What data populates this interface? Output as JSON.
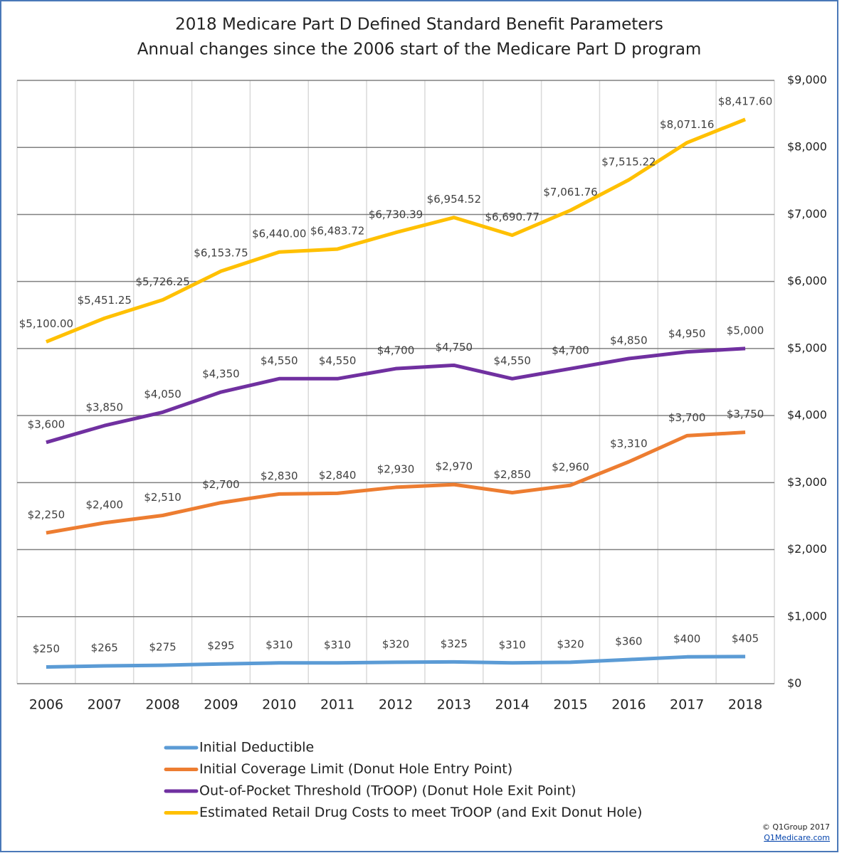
{
  "chart_data": {
    "type": "line",
    "title": "2018 Medicare Part D Defined Standard Benefit Parameters",
    "subtitle": "Annual changes since the 2006 start of the Medicare Part D program",
    "categories": [
      "2006",
      "2007",
      "2008",
      "2009",
      "2010",
      "2011",
      "2012",
      "2013",
      "2014",
      "2015",
      "2016",
      "2017",
      "2018"
    ],
    "series": [
      {
        "name": "Initial Deductible",
        "color": "#5b9bd5",
        "values": [
          250,
          265,
          275,
          295,
          310,
          310,
          320,
          325,
          310,
          320,
          360,
          400,
          405
        ],
        "value_labels": [
          "$250",
          "$265",
          "$275",
          "$295",
          "$310",
          "$310",
          "$320",
          "$325",
          "$310",
          "$320",
          "$360",
          "$400",
          "$405"
        ]
      },
      {
        "name": "Initial Coverage Limit (Donut Hole Entry Point)",
        "color": "#ed7d31",
        "values": [
          2250,
          2400,
          2510,
          2700,
          2830,
          2840,
          2930,
          2970,
          2850,
          2960,
          3310,
          3700,
          3750
        ],
        "value_labels": [
          "$2,250",
          "$2,400",
          "$2,510",
          "$2,700",
          "$2,830",
          "$2,840",
          "$2,930",
          "$2,970",
          "$2,850",
          "$2,960",
          "$3,310",
          "$3,700",
          "$3,750"
        ]
      },
      {
        "name": "Out-of-Pocket Threshold (TrOOP) (Donut Hole Exit Point)",
        "color": "#7030a0",
        "values": [
          3600,
          3850,
          4050,
          4350,
          4550,
          4550,
          4700,
          4750,
          4550,
          4700,
          4850,
          4950,
          5000
        ],
        "value_labels": [
          "$3,600",
          "$3,850",
          "$4,050",
          "$4,350",
          "$4,550",
          "$4,550",
          "$4,700",
          "$4,750",
          "$4,550",
          "$4,700",
          "$4,850",
          "$4,950",
          "$5,000"
        ]
      },
      {
        "name": "Estimated Retail Drug Costs to meet TrOOP (and Exit Donut Hole)",
        "color": "#ffc000",
        "values": [
          5100.0,
          5451.25,
          5726.25,
          6153.75,
          6440.0,
          6483.72,
          6730.39,
          6954.52,
          6690.77,
          7061.76,
          7515.22,
          8071.16,
          8417.6
        ],
        "value_labels": [
          "$5,100.00",
          "$5,451.25",
          "$5,726.25",
          "$6,153.75",
          "$6,440.00",
          "$6,483.72",
          "$6,730.39",
          "$6,954.52",
          "$6,690.77",
          "$7,061.76",
          "$7,515.22",
          "$8,071.16",
          "$8,417.60"
        ]
      }
    ],
    "ylim": [
      0,
      9000
    ],
    "yticks": [
      {
        "value": 0,
        "label": "$0"
      },
      {
        "value": 1000,
        "label": "$1,000"
      },
      {
        "value": 2000,
        "label": "$2,000"
      },
      {
        "value": 3000,
        "label": "$3,000"
      },
      {
        "value": 4000,
        "label": "$4,000"
      },
      {
        "value": 5000,
        "label": "$5,000"
      },
      {
        "value": 6000,
        "label": "$6,000"
      },
      {
        "value": 7000,
        "label": "$7,000"
      },
      {
        "value": 8000,
        "label": "$8,000"
      },
      {
        "value": 9000,
        "label": "$9,000"
      }
    ],
    "grid": true,
    "legend": "bottom",
    "footer": [
      "© Q1Group 2017",
      "Q1Medicare.com"
    ]
  }
}
